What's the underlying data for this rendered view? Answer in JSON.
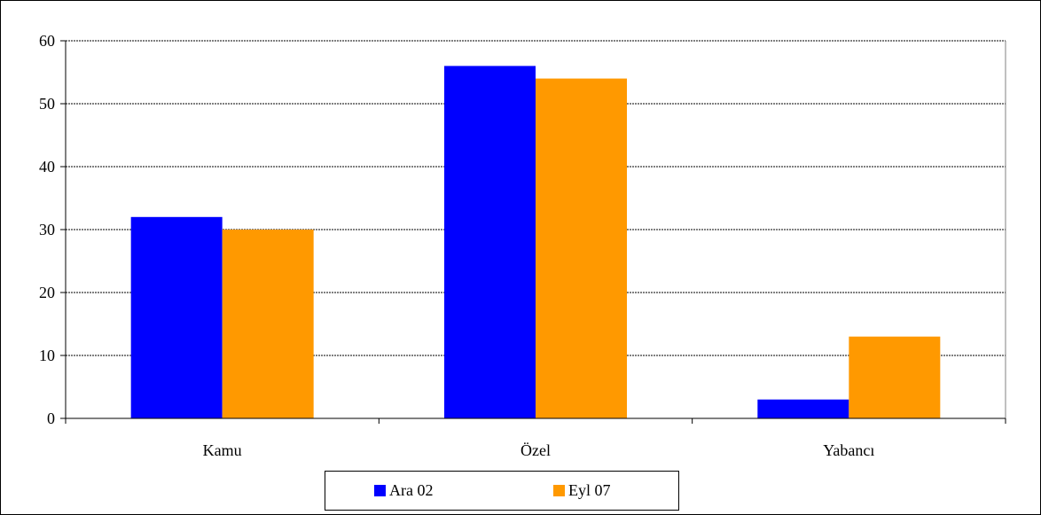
{
  "chart_data": {
    "type": "bar",
    "title": "",
    "xlabel": "",
    "ylabel": "",
    "categories": [
      "Kamu",
      "Özel",
      "Yabancı"
    ],
    "series": [
      {
        "name": "Ara 02",
        "color": "#0000FF",
        "values": [
          32,
          56,
          3
        ]
      },
      {
        "name": "Eyl 07",
        "color": "#FF9900",
        "values": [
          30,
          54,
          13
        ]
      }
    ],
    "ylim": [
      0,
      60
    ],
    "yticks": [
      0,
      10,
      20,
      30,
      40,
      50,
      60
    ],
    "grid": true,
    "legend": "bottom"
  }
}
